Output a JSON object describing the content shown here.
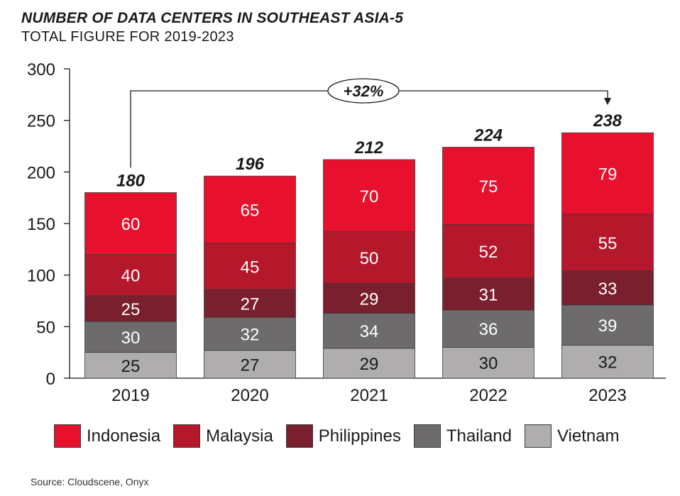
{
  "header": {
    "title": "NUMBER OF DATA CENTERS IN SOUTHEAST ASIA-5",
    "subtitle": "TOTAL FIGURE FOR 2019-2023"
  },
  "source": "Source: Cloudscene, Onyx",
  "colors": {
    "Indonesia": "#e8112d",
    "Malaysia": "#b5182b",
    "Philippines": "#7a1f2d",
    "Thailand": "#6e6b6c",
    "Vietnam": "#b0adae"
  },
  "chart_data": {
    "type": "bar",
    "stacked": true,
    "categories": [
      "2019",
      "2020",
      "2021",
      "2022",
      "2023"
    ],
    "series": [
      {
        "name": "Vietnam",
        "values": [
          25,
          27,
          29,
          30,
          32
        ]
      },
      {
        "name": "Thailand",
        "values": [
          30,
          32,
          34,
          36,
          39
        ]
      },
      {
        "name": "Philippines",
        "values": [
          25,
          27,
          29,
          31,
          33
        ]
      },
      {
        "name": "Malaysia",
        "values": [
          40,
          45,
          50,
          52,
          55
        ]
      },
      {
        "name": "Indonesia",
        "values": [
          60,
          65,
          70,
          75,
          79
        ]
      }
    ],
    "totals": [
      180,
      196,
      212,
      224,
      238
    ],
    "ylim": [
      0,
      300
    ],
    "yticks": [
      0,
      50,
      100,
      150,
      200,
      250,
      300
    ],
    "annotation": "+32%",
    "legend_order": [
      "Indonesia",
      "Malaysia",
      "Philippines",
      "Thailand",
      "Vietnam"
    ],
    "legend_position": "bottom"
  }
}
